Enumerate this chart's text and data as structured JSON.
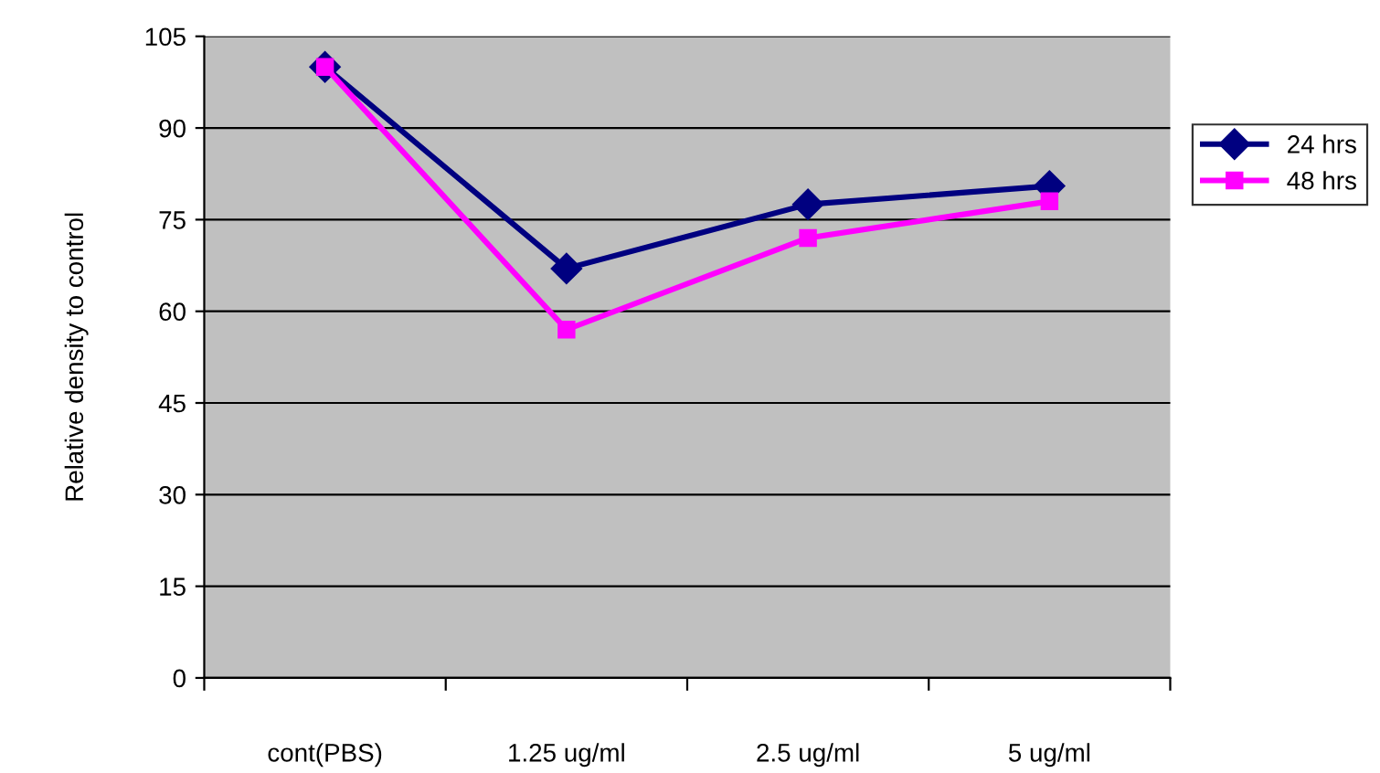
{
  "chart_data": {
    "type": "line",
    "ylabel": "Relative density to control",
    "categories": [
      "cont(PBS)",
      "1.25 ug/ml",
      "2.5 ug/ml",
      "5 ug/ml"
    ],
    "series": [
      {
        "name": "24 hrs",
        "color": "#000080",
        "marker": "diamond",
        "values": [
          100,
          67,
          77.5,
          80.5
        ]
      },
      {
        "name": "48 hrs",
        "color": "#ff00ff",
        "marker": "square",
        "values": [
          100,
          57,
          72,
          78
        ]
      }
    ],
    "ylim": [
      0,
      105
    ],
    "yticks": [
      0,
      15,
      30,
      45,
      60,
      75,
      90,
      105
    ],
    "grid": "y",
    "legend": "right"
  }
}
